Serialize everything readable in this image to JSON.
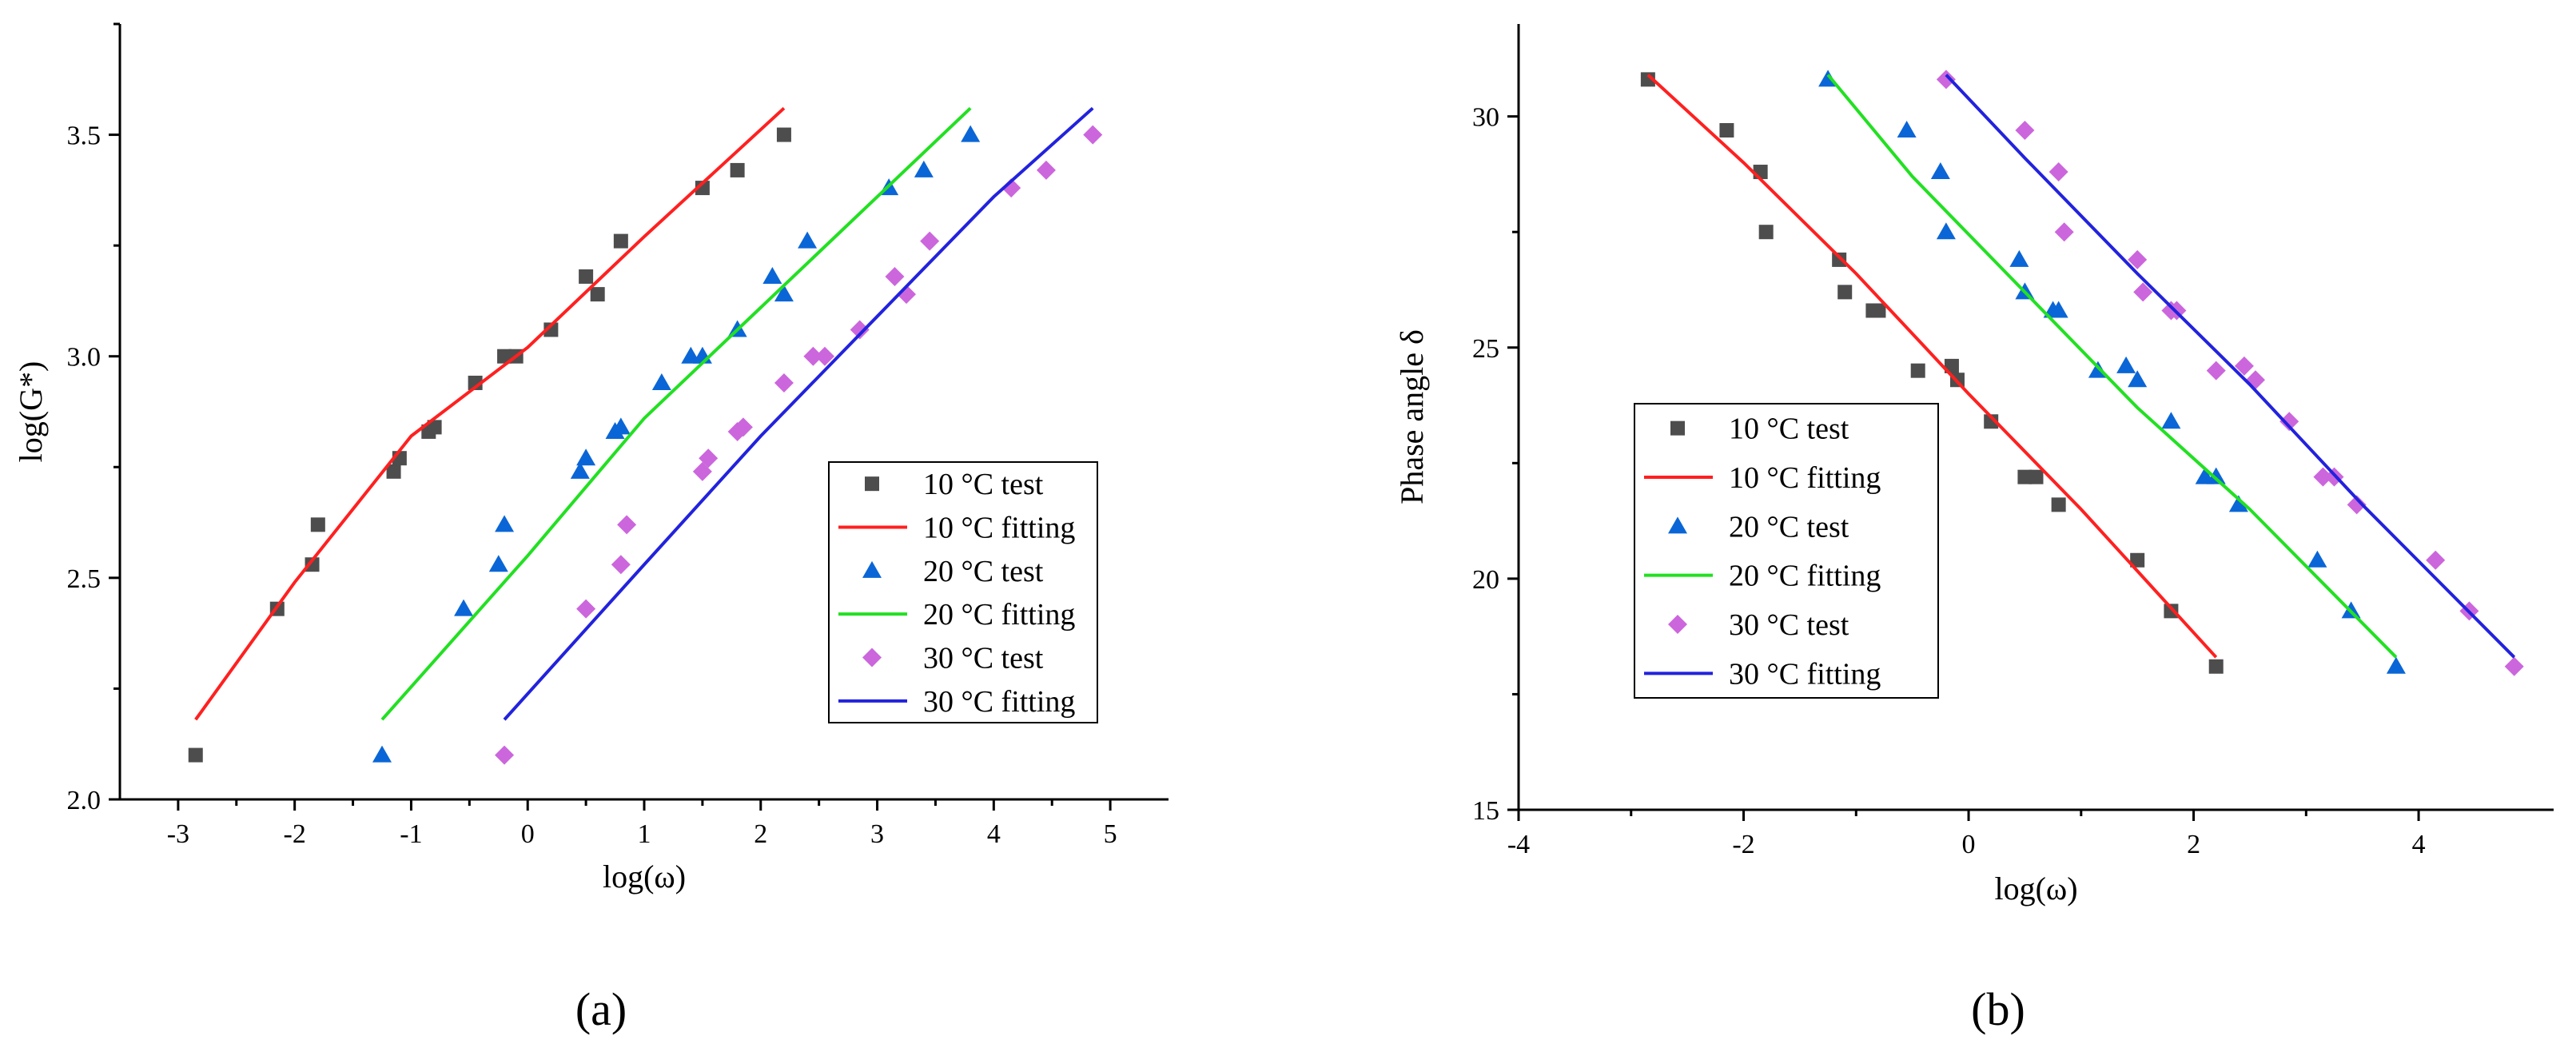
{
  "panel_labels": [
    "(a)",
    "(b)"
  ],
  "colors": {
    "10": "#4d4d4d",
    "10_fit": "#ff2020",
    "20": "#0a66d6",
    "20_fit": "#22e022",
    "30": "#cc66dd",
    "30_fit": "#2222dd"
  },
  "chart_data": [
    {
      "type": "scatter",
      "panel": "(a)",
      "xlabel": "log(ω)",
      "ylabel": "log(G*)",
      "xlim": [
        -3.5,
        5.5
      ],
      "ylim": [
        2.0,
        3.75
      ],
      "xticks": [
        -3,
        -2,
        -1,
        0,
        1,
        2,
        3,
        4,
        5
      ],
      "yticks": [
        2.0,
        2.5,
        3.0,
        3.5
      ],
      "xtick_labels": [
        "-3",
        "-2",
        "-1",
        "0",
        "1",
        "2",
        "3",
        "4",
        "5"
      ],
      "ytick_labels": [
        "2.0",
        "2.5",
        "3.0",
        "3.5"
      ],
      "grid": false,
      "legend_position": "lower-right",
      "legend": [
        "10 °C test",
        "10 °C fitting",
        "20 °C test",
        "20 °C fitting",
        "30 °C test",
        "30 °C fitting"
      ],
      "series": [
        {
          "name": "10 °C test",
          "kind": "points",
          "marker": "square",
          "color": "#4d4d4d",
          "x": [
            -2.85,
            -2.15,
            -1.85,
            -1.8,
            -1.15,
            -1.1,
            -0.85,
            -0.8,
            -0.45,
            -0.2,
            -0.1,
            0.2,
            0.5,
            0.6,
            0.8,
            1.5,
            1.8,
            2.2
          ],
          "y": [
            2.1,
            2.43,
            2.53,
            2.62,
            2.74,
            2.77,
            2.83,
            2.84,
            2.94,
            3.0,
            3.0,
            3.06,
            3.18,
            3.14,
            3.26,
            3.38,
            3.42,
            3.5
          ]
        },
        {
          "name": "10 °C fitting",
          "kind": "line",
          "color": "#ff2020",
          "x": [
            -2.85,
            -2.0,
            -1.0,
            0.0,
            1.0,
            2.2
          ],
          "y": [
            2.18,
            2.49,
            2.82,
            3.02,
            3.27,
            3.56
          ]
        },
        {
          "name": "20 °C test",
          "kind": "points",
          "marker": "triangle",
          "color": "#0a66d6",
          "x": [
            -1.25,
            -0.55,
            -0.25,
            -0.2,
            0.45,
            0.5,
            0.75,
            0.8,
            1.15,
            1.4,
            1.5,
            1.8,
            2.1,
            2.2,
            2.4,
            3.1,
            3.4,
            3.8
          ],
          "y": [
            2.1,
            2.43,
            2.53,
            2.62,
            2.74,
            2.77,
            2.83,
            2.84,
            2.94,
            3.0,
            3.0,
            3.06,
            3.18,
            3.14,
            3.26,
            3.38,
            3.42,
            3.5
          ]
        },
        {
          "name": "20 °C fitting",
          "kind": "line",
          "color": "#22e022",
          "x": [
            -1.25,
            0.0,
            1.0,
            2.0,
            3.0,
            3.8
          ],
          "y": [
            2.18,
            2.55,
            2.86,
            3.11,
            3.36,
            3.56
          ]
        },
        {
          "name": "30 °C test",
          "kind": "points",
          "marker": "diamond",
          "color": "#cc66dd",
          "x": [
            -0.2,
            0.5,
            0.8,
            0.85,
            1.5,
            1.55,
            1.8,
            1.85,
            2.2,
            2.45,
            2.55,
            2.85,
            3.15,
            3.25,
            3.45,
            4.15,
            4.45,
            4.85
          ],
          "y": [
            2.1,
            2.43,
            2.53,
            2.62,
            2.74,
            2.77,
            2.83,
            2.84,
            2.94,
            3.0,
            3.0,
            3.06,
            3.18,
            3.14,
            3.26,
            3.38,
            3.42,
            3.5
          ]
        },
        {
          "name": "30 °C fitting",
          "kind": "line",
          "color": "#2222dd",
          "x": [
            -0.2,
            1.0,
            2.0,
            3.0,
            4.0,
            4.85
          ],
          "y": [
            2.18,
            2.53,
            2.82,
            3.09,
            3.36,
            3.56
          ]
        }
      ]
    },
    {
      "type": "scatter",
      "panel": "(b)",
      "xlabel": "log(ω)",
      "ylabel": "Phase angle δ",
      "xlim": [
        -4,
        5.2
      ],
      "ylim": [
        15,
        32
      ],
      "xticks": [
        -4,
        -2,
        0,
        2,
        4
      ],
      "yticks": [
        15,
        20,
        25,
        30
      ],
      "xtick_labels": [
        "-4",
        "-2",
        "0",
        "2",
        "4"
      ],
      "ytick_labels": [
        "15",
        "20",
        "25",
        "30"
      ],
      "grid": false,
      "legend_position": "center-left",
      "legend": [
        "10 °C test",
        "10 °C fitting",
        "20 °C test",
        "20 °C fitting",
        "30 °C test",
        "30 °C fitting"
      ],
      "series": [
        {
          "name": "10 °C test",
          "kind": "points",
          "marker": "square",
          "color": "#4d4d4d",
          "x": [
            -2.85,
            -2.15,
            -1.85,
            -1.8,
            -1.15,
            -1.1,
            -0.85,
            -0.8,
            -0.45,
            -0.15,
            -0.1,
            0.2,
            0.5,
            0.6,
            0.8,
            1.5,
            1.8,
            2.2
          ],
          "y": [
            30.8,
            29.7,
            28.8,
            27.5,
            26.9,
            26.2,
            25.8,
            25.8,
            24.5,
            24.6,
            24.3,
            23.4,
            22.2,
            22.2,
            21.6,
            20.4,
            19.3,
            18.1
          ]
        },
        {
          "name": "10 °C fitting",
          "kind": "line",
          "color": "#ff2020",
          "x": [
            -2.85,
            -2.0,
            -1.0,
            0.0,
            1.0,
            2.2
          ],
          "y": [
            30.9,
            29.0,
            26.6,
            24.0,
            21.5,
            18.3
          ]
        },
        {
          "name": "20 °C test",
          "kind": "points",
          "marker": "triangle",
          "color": "#0a66d6",
          "x": [
            -1.25,
            -0.55,
            -0.25,
            -0.2,
            0.45,
            0.5,
            0.75,
            0.8,
            1.15,
            1.4,
            1.5,
            1.8,
            2.1,
            2.2,
            2.4,
            3.1,
            3.4,
            3.8
          ],
          "y": [
            30.8,
            29.7,
            28.8,
            27.5,
            26.9,
            26.2,
            25.8,
            25.8,
            24.5,
            24.6,
            24.3,
            23.4,
            22.2,
            22.2,
            21.6,
            20.4,
            19.3,
            18.1
          ]
        },
        {
          "name": "20 °C fitting",
          "kind": "line",
          "color": "#22e022",
          "x": [
            -1.25,
            -0.5,
            0.5,
            1.5,
            2.5,
            3.8
          ],
          "y": [
            30.9,
            28.7,
            26.2,
            23.7,
            21.5,
            18.3
          ]
        },
        {
          "name": "30 °C test",
          "kind": "points",
          "marker": "diamond",
          "color": "#cc66dd",
          "x": [
            -0.2,
            0.5,
            0.8,
            0.85,
            1.5,
            1.55,
            1.8,
            1.85,
            2.2,
            2.45,
            2.55,
            2.85,
            3.15,
            3.25,
            3.45,
            4.15,
            4.45,
            4.85
          ],
          "y": [
            30.8,
            29.7,
            28.8,
            27.5,
            26.9,
            26.2,
            25.8,
            25.8,
            24.5,
            24.6,
            24.3,
            23.4,
            22.2,
            22.2,
            21.6,
            20.4,
            19.3,
            18.1
          ]
        },
        {
          "name": "30 °C fitting",
          "kind": "line",
          "color": "#2222dd",
          "x": [
            -0.2,
            0.5,
            1.5,
            2.5,
            3.5,
            4.85
          ],
          "y": [
            30.9,
            29.1,
            26.6,
            24.2,
            21.6,
            18.3
          ]
        }
      ]
    }
  ]
}
